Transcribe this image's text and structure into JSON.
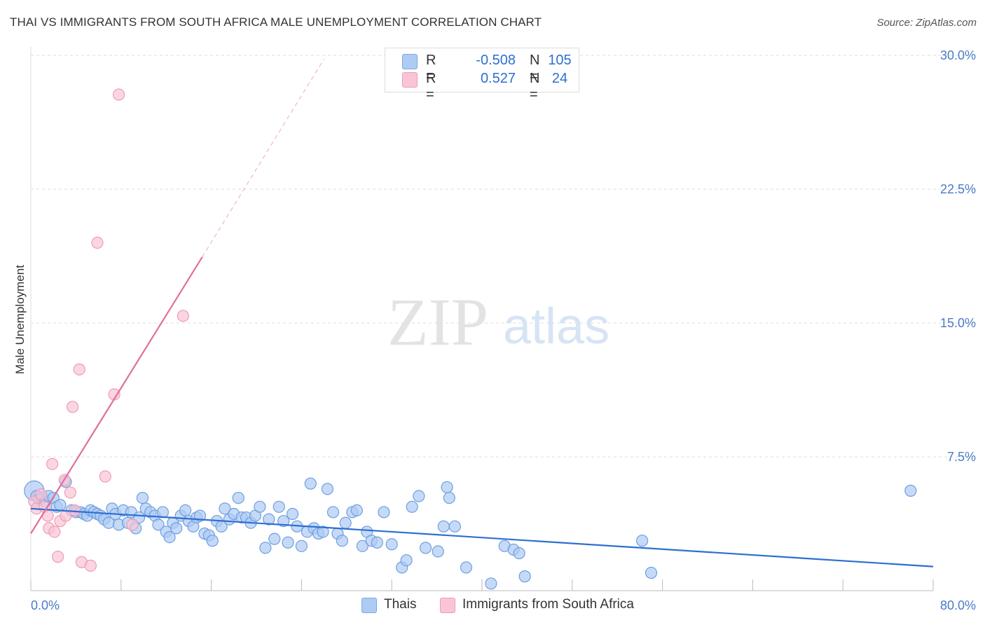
{
  "title": "THAI VS IMMIGRANTS FROM SOUTH AFRICA MALE UNEMPLOYMENT CORRELATION CHART",
  "source": "Source: ZipAtlas.com",
  "watermark": {
    "zip": "ZIP",
    "atlas": "atlas"
  },
  "legend": {
    "rows": [
      {
        "r_label": "R =",
        "r_value": "-0.508",
        "n_label": "N =",
        "n_value": "105",
        "color": "#aecbf3",
        "border": "#7aa9e8"
      },
      {
        "r_label": "R =",
        "r_value": "0.527",
        "n_label": "N =",
        "n_value": "24",
        "color": "#f9c5d6",
        "border": "#ee9bb6"
      }
    ]
  },
  "bottom_legend": {
    "thais": "Thais",
    "immigrants": "Immigrants from South Africa"
  },
  "chart_data": {
    "type": "scatter",
    "title": "THAI VS IMMIGRANTS FROM SOUTH AFRICA MALE UNEMPLOYMENT CORRELATION CHART",
    "xlabel": "",
    "ylabel": "Male Unemployment",
    "xlim": [
      0,
      80
    ],
    "ylim": [
      0,
      30
    ],
    "x_tick_labels": [
      "0.0%",
      "80.0%"
    ],
    "y_ticks": [
      7.5,
      15.0,
      22.5,
      30.0
    ],
    "y_tick_labels": [
      "7.5%",
      "15.0%",
      "22.5%",
      "30.0%"
    ],
    "grid": true,
    "series": [
      {
        "name": "Thais",
        "color": "#aecbf3",
        "stroke": "#6d9fe0",
        "trend_color": "#2e6fd1",
        "trend": {
          "x": [
            0,
            80
          ],
          "y": [
            4.6,
            1.35
          ]
        },
        "points": [
          [
            0.3,
            5.6
          ],
          [
            0.5,
            5.3
          ],
          [
            0.7,
            5.1
          ],
          [
            1.0,
            5.2
          ],
          [
            1.3,
            5.0
          ],
          [
            1.6,
            5.3
          ],
          [
            2.0,
            5.2
          ],
          [
            2.3,
            4.7
          ],
          [
            2.6,
            4.8
          ],
          [
            3.1,
            6.1
          ],
          [
            3.6,
            4.5
          ],
          [
            4.0,
            4.4
          ],
          [
            4.4,
            4.4
          ],
          [
            4.7,
            4.3
          ],
          [
            5.0,
            4.2
          ],
          [
            5.3,
            4.5
          ],
          [
            5.6,
            4.4
          ],
          [
            5.9,
            4.3
          ],
          [
            6.2,
            4.2
          ],
          [
            6.5,
            4.0
          ],
          [
            6.9,
            3.8
          ],
          [
            7.2,
            4.6
          ],
          [
            7.5,
            4.3
          ],
          [
            7.8,
            3.7
          ],
          [
            8.2,
            4.5
          ],
          [
            8.6,
            3.8
          ],
          [
            8.9,
            4.4
          ],
          [
            9.3,
            3.5
          ],
          [
            9.6,
            4.1
          ],
          [
            9.9,
            5.2
          ],
          [
            10.2,
            4.6
          ],
          [
            10.6,
            4.4
          ],
          [
            11.0,
            4.2
          ],
          [
            11.3,
            3.7
          ],
          [
            11.7,
            4.4
          ],
          [
            12.0,
            3.3
          ],
          [
            12.3,
            3.0
          ],
          [
            12.6,
            3.8
          ],
          [
            12.9,
            3.5
          ],
          [
            13.3,
            4.2
          ],
          [
            13.7,
            4.5
          ],
          [
            14.0,
            3.9
          ],
          [
            14.4,
            3.6
          ],
          [
            14.7,
            4.1
          ],
          [
            15.0,
            4.2
          ],
          [
            15.4,
            3.2
          ],
          [
            15.8,
            3.1
          ],
          [
            16.1,
            2.8
          ],
          [
            16.5,
            3.9
          ],
          [
            16.9,
            3.6
          ],
          [
            17.2,
            4.6
          ],
          [
            17.6,
            4.0
          ],
          [
            18.0,
            4.3
          ],
          [
            18.4,
            5.2
          ],
          [
            18.7,
            4.1
          ],
          [
            19.1,
            4.1
          ],
          [
            19.5,
            3.8
          ],
          [
            19.9,
            4.2
          ],
          [
            20.3,
            4.7
          ],
          [
            20.8,
            2.4
          ],
          [
            21.1,
            4.0
          ],
          [
            21.6,
            2.9
          ],
          [
            22.0,
            4.7
          ],
          [
            22.4,
            3.9
          ],
          [
            22.8,
            2.7
          ],
          [
            23.2,
            4.3
          ],
          [
            23.6,
            3.6
          ],
          [
            24.0,
            2.5
          ],
          [
            24.5,
            3.3
          ],
          [
            24.8,
            6.0
          ],
          [
            25.1,
            3.5
          ],
          [
            25.5,
            3.2
          ],
          [
            25.9,
            3.3
          ],
          [
            26.3,
            5.7
          ],
          [
            26.8,
            4.4
          ],
          [
            27.2,
            3.2
          ],
          [
            27.6,
            2.8
          ],
          [
            27.9,
            3.8
          ],
          [
            28.5,
            4.4
          ],
          [
            28.9,
            4.5
          ],
          [
            29.4,
            2.5
          ],
          [
            29.8,
            3.3
          ],
          [
            30.2,
            2.8
          ],
          [
            30.7,
            2.7
          ],
          [
            31.3,
            4.4
          ],
          [
            32.0,
            2.6
          ],
          [
            32.9,
            1.3
          ],
          [
            33.3,
            1.7
          ],
          [
            33.8,
            4.7
          ],
          [
            34.4,
            5.3
          ],
          [
            35.0,
            2.4
          ],
          [
            36.1,
            2.2
          ],
          [
            36.6,
            3.6
          ],
          [
            36.9,
            5.8
          ],
          [
            37.1,
            5.2
          ],
          [
            37.6,
            3.6
          ],
          [
            38.6,
            1.3
          ],
          [
            40.8,
            0.4
          ],
          [
            42.0,
            2.5
          ],
          [
            42.8,
            2.3
          ],
          [
            43.3,
            2.1
          ],
          [
            43.8,
            0.8
          ],
          [
            54.2,
            2.8
          ],
          [
            55.0,
            1.0
          ],
          [
            78.0,
            5.6
          ]
        ]
      },
      {
        "name": "Immigrants from South Africa",
        "color": "#f9c5d6",
        "stroke": "#ee9bb6",
        "trend_color": "#e0709a",
        "trend": {
          "x": [
            0,
            15.2
          ],
          "y": [
            3.2,
            18.7
          ]
        },
        "trend_dashed": {
          "x": [
            15.2,
            26.0
          ],
          "y": [
            18.7,
            29.8
          ]
        },
        "points": [
          [
            0.3,
            5.0
          ],
          [
            0.5,
            4.6
          ],
          [
            0.9,
            5.4
          ],
          [
            1.2,
            4.7
          ],
          [
            1.5,
            4.2
          ],
          [
            1.6,
            3.5
          ],
          [
            1.9,
            7.1
          ],
          [
            2.1,
            3.3
          ],
          [
            2.4,
            1.9
          ],
          [
            2.6,
            3.9
          ],
          [
            3.0,
            6.2
          ],
          [
            3.1,
            4.2
          ],
          [
            3.5,
            5.5
          ],
          [
            3.7,
            10.3
          ],
          [
            3.9,
            4.5
          ],
          [
            4.3,
            12.4
          ],
          [
            4.5,
            1.6
          ],
          [
            5.3,
            1.4
          ],
          [
            5.9,
            19.5
          ],
          [
            6.6,
            6.4
          ],
          [
            7.4,
            11.0
          ],
          [
            7.8,
            27.8
          ],
          [
            9.0,
            3.7
          ],
          [
            13.5,
            15.4
          ]
        ]
      }
    ]
  }
}
